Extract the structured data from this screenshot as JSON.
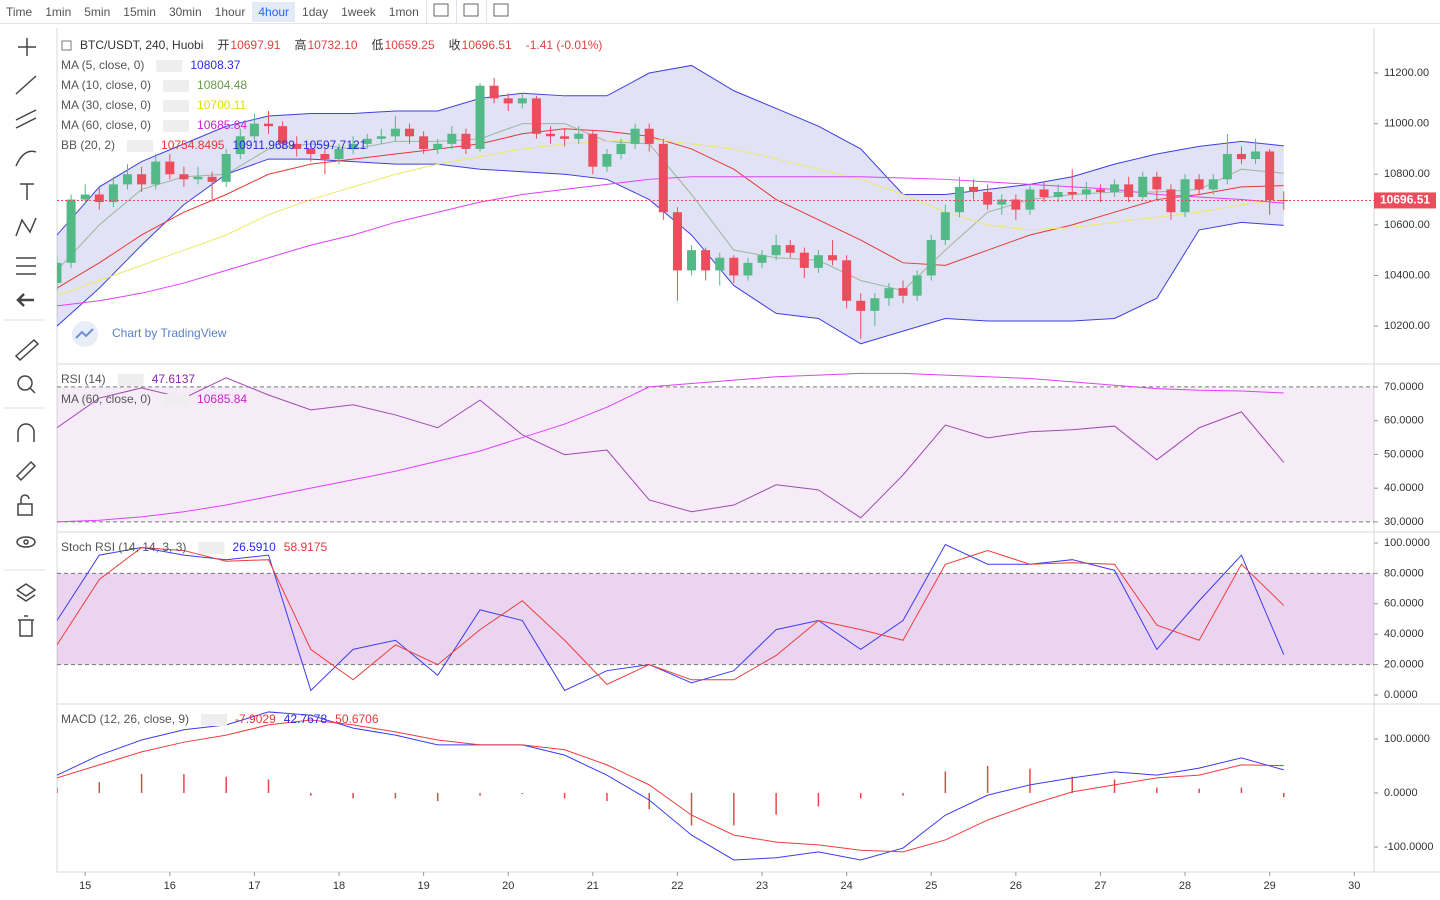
{
  "toolbar": {
    "intervals": [
      "Time",
      "1min",
      "5min",
      "15min",
      "30min",
      "1hour",
      "4hour",
      "1day",
      "1week",
      "1mon"
    ],
    "active": 6
  },
  "header": {
    "symbol": "BTC/USDT, 240, Huobi",
    "open_label": "开",
    "open": "10697.91",
    "high_label": "高",
    "high": "10732.10",
    "low_label": "低",
    "low": "10659.25",
    "close_label": "收",
    "close": "10696.51",
    "change": "-1.41 (-0.01%)"
  },
  "watermark": "Chart by TradingView",
  "xlim": [
    0,
    93.4
  ],
  "xticks": [
    {
      "value": 2,
      "label": "15"
    },
    {
      "value": 8,
      "label": "16"
    },
    {
      "value": 14,
      "label": "17"
    },
    {
      "value": 20,
      "label": "18"
    },
    {
      "value": 26,
      "label": "19"
    },
    {
      "value": 32,
      "label": "20"
    },
    {
      "value": 38,
      "label": "21"
    },
    {
      "value": 44,
      "label": "22"
    },
    {
      "value": 50,
      "label": "23"
    },
    {
      "value": 56,
      "label": "24"
    },
    {
      "value": 62,
      "label": "25"
    },
    {
      "value": 68,
      "label": "26"
    },
    {
      "value": 74,
      "label": "27"
    },
    {
      "value": 80,
      "label": "28"
    },
    {
      "value": 86,
      "label": "29"
    },
    {
      "value": 92,
      "label": "30"
    }
  ],
  "x": [
    0,
    3,
    6,
    9,
    12,
    15,
    18,
    21,
    24,
    27,
    30,
    33,
    36,
    39,
    42,
    45,
    48,
    51,
    54,
    57,
    60,
    63,
    66,
    69,
    72,
    75,
    78,
    81,
    84,
    87
  ],
  "price": {
    "ylim": [
      10058,
      11378
    ],
    "yticks": [
      {
        "value": 10200,
        "label": "10200.00"
      },
      {
        "value": 10400,
        "label": "10400.00"
      },
      {
        "value": 10600,
        "label": "10600.00"
      },
      {
        "value": 10800,
        "label": "10800.00"
      },
      {
        "value": 11000,
        "label": "11000.00"
      },
      {
        "value": 11200,
        "label": "11200.00"
      }
    ],
    "up_color": "#53b987",
    "down_color": "#eb4d5c",
    "last_label": "10696.51",
    "legend": [
      {
        "label": "MA (5, close, 0)",
        "values": [
          "10808.37"
        ],
        "colors": [
          "#2a2ae0"
        ]
      },
      {
        "label": "MA (10, close, 0)",
        "values": [
          "10804.48"
        ],
        "colors": [
          "#6a9a4a"
        ]
      },
      {
        "label": "MA (30, close, 0)",
        "values": [
          "10700.11"
        ],
        "colors": [
          "#e0e000"
        ]
      },
      {
        "label": "MA (60, close, 0)",
        "values": [
          "10685.84"
        ],
        "colors": [
          "#d020d0"
        ]
      },
      {
        "label": "BB (20, 2)",
        "values": [
          "10754.8495",
          "10911.9689",
          "10597.7121"
        ],
        "colors": [
          "#e53935",
          "#2a2ae0",
          "#2a2ae0"
        ]
      }
    ],
    "band": {
      "color": "#3f3fe0",
      "fill": "rgba(120,123,210,0.22)",
      "upper": [
        10560,
        10750,
        10850,
        10920,
        10990,
        11030,
        11040,
        11040,
        11050,
        11050,
        11100,
        11120,
        11110,
        11110,
        11200,
        11230,
        11130,
        11060,
        10990,
        10900,
        10720,
        10720,
        10740,
        10760,
        10790,
        10840,
        10880,
        10910,
        10930,
        10912
      ],
      "lower": [
        10200,
        10350,
        10520,
        10680,
        10800,
        10860,
        10860,
        10850,
        10840,
        10840,
        10820,
        10810,
        10800,
        10780,
        10700,
        10560,
        10360,
        10250,
        10230,
        10130,
        10180,
        10230,
        10220,
        10220,
        10220,
        10230,
        10310,
        10580,
        10610,
        10598
      ]
    },
    "lines": [
      {
        "color": "#e53935",
        "values": [
          10350,
          10450,
          10560,
          10650,
          10720,
          10800,
          10840,
          10860,
          10880,
          10900,
          10920,
          10960,
          10980,
          10970,
          10950,
          10900,
          10820,
          10700,
          10620,
          10540,
          10450,
          10440,
          10500,
          10560,
          10600,
          10650,
          10700,
          10720,
          10750,
          10755
        ]
      },
      {
        "color": "#9cb89c",
        "values": [
          10420,
          10600,
          10740,
          10790,
          10800,
          10900,
          10920,
          10900,
          10930,
          10930,
          10940,
          11000,
          11000,
          10930,
          10920,
          10720,
          10500,
          10470,
          10460,
          10380,
          10340,
          10500,
          10650,
          10700,
          10720,
          10730,
          10730,
          10740,
          10820,
          10804
        ]
      },
      {
        "color": "#eaea6a",
        "values": [
          10320,
          10380,
          10440,
          10500,
          10560,
          10640,
          10700,
          10750,
          10800,
          10840,
          10870,
          10900,
          10920,
          10930,
          10940,
          10920,
          10900,
          10860,
          10820,
          10780,
          10720,
          10650,
          10600,
          10580,
          10590,
          10610,
          10630,
          10650,
          10680,
          10700
        ]
      },
      {
        "color": "#e040fb",
        "values": [
          10280,
          10300,
          10330,
          10370,
          10420,
          10470,
          10520,
          10560,
          10610,
          10650,
          10690,
          10720,
          10740,
          10760,
          10780,
          10790,
          10790,
          10790,
          10790,
          10790,
          10785,
          10780,
          10770,
          10760,
          10750,
          10740,
          10720,
          10710,
          10700,
          10686
        ]
      }
    ],
    "candles": [
      [
        10370,
        10480,
        10340,
        10450
      ],
      [
        10450,
        10720,
        10430,
        10700
      ],
      [
        10700,
        10760,
        10680,
        10720
      ],
      [
        10720,
        10750,
        10660,
        10690
      ],
      [
        10690,
        10790,
        10670,
        10760
      ],
      [
        10760,
        10840,
        10740,
        10800
      ],
      [
        10800,
        10830,
        10730,
        10760
      ],
      [
        10760,
        10880,
        10740,
        10850
      ],
      [
        10850,
        10880,
        10780,
        10800
      ],
      [
        10800,
        10830,
        10750,
        10780
      ],
      [
        10780,
        10830,
        10760,
        10790
      ],
      [
        10790,
        10810,
        10700,
        10770
      ],
      [
        10770,
        10900,
        10750,
        10880
      ],
      [
        10880,
        10980,
        10860,
        10950
      ],
      [
        10950,
        11040,
        10930,
        11000
      ],
      [
        11000,
        11050,
        10960,
        10990
      ],
      [
        10990,
        11010,
        10900,
        10920
      ],
      [
        10920,
        10950,
        10870,
        10900
      ],
      [
        10900,
        10930,
        10850,
        10880
      ],
      [
        10880,
        10900,
        10800,
        10860
      ],
      [
        10860,
        10920,
        10840,
        10900
      ],
      [
        10900,
        10950,
        10880,
        10920
      ],
      [
        10920,
        10960,
        10900,
        10940
      ],
      [
        10940,
        10980,
        10920,
        10950
      ],
      [
        10950,
        11030,
        10930,
        10980
      ],
      [
        10980,
        11000,
        10920,
        10950
      ],
      [
        10950,
        10970,
        10880,
        10900
      ],
      [
        10900,
        10940,
        10880,
        10920
      ],
      [
        10920,
        10990,
        10900,
        10960
      ],
      [
        10960,
        10980,
        10880,
        10900
      ],
      [
        10900,
        11160,
        10890,
        11150
      ],
      [
        11150,
        11180,
        11080,
        11100
      ],
      [
        11100,
        11120,
        11050,
        11080
      ],
      [
        11080,
        11120,
        11060,
        11100
      ],
      [
        11100,
        11110,
        10940,
        10960
      ],
      [
        10960,
        10990,
        10920,
        10950
      ],
      [
        10950,
        10980,
        10910,
        10940
      ],
      [
        10940,
        10990,
        10920,
        10960
      ],
      [
        10960,
        10970,
        10800,
        10830
      ],
      [
        10830,
        10900,
        10810,
        10880
      ],
      [
        10880,
        10940,
        10860,
        10920
      ],
      [
        10920,
        11000,
        10900,
        10980
      ],
      [
        10980,
        11000,
        10890,
        10920
      ],
      [
        10920,
        10940,
        10620,
        10650
      ],
      [
        10650,
        10670,
        10300,
        10420
      ],
      [
        10420,
        10520,
        10400,
        10500
      ],
      [
        10500,
        10510,
        10380,
        10420
      ],
      [
        10420,
        10490,
        10360,
        10470
      ],
      [
        10470,
        10480,
        10370,
        10400
      ],
      [
        10400,
        10470,
        10380,
        10450
      ],
      [
        10450,
        10500,
        10430,
        10480
      ],
      [
        10480,
        10560,
        10460,
        10520
      ],
      [
        10520,
        10540,
        10470,
        10490
      ],
      [
        10490,
        10510,
        10390,
        10430
      ],
      [
        10430,
        10500,
        10410,
        10480
      ],
      [
        10480,
        10540,
        10440,
        10460
      ],
      [
        10460,
        10480,
        10270,
        10300
      ],
      [
        10300,
        10330,
        10150,
        10260
      ],
      [
        10260,
        10330,
        10200,
        10310
      ],
      [
        10310,
        10370,
        10280,
        10350
      ],
      [
        10350,
        10380,
        10290,
        10320
      ],
      [
        10320,
        10420,
        10300,
        10400
      ],
      [
        10400,
        10560,
        10380,
        10540
      ],
      [
        10540,
        10680,
        10520,
        10650
      ],
      [
        10650,
        10790,
        10630,
        10750
      ],
      [
        10750,
        10780,
        10700,
        10730
      ],
      [
        10730,
        10760,
        10660,
        10680
      ],
      [
        10680,
        10720,
        10640,
        10700
      ],
      [
        10700,
        10720,
        10620,
        10660
      ],
      [
        10660,
        10760,
        10640,
        10740
      ],
      [
        10740,
        10770,
        10690,
        10710
      ],
      [
        10710,
        10760,
        10690,
        10730
      ],
      [
        10730,
        10820,
        10700,
        10720
      ],
      [
        10720,
        10770,
        10700,
        10740
      ],
      [
        10740,
        10760,
        10690,
        10730
      ],
      [
        10730,
        10780,
        10710,
        10760
      ],
      [
        10760,
        10790,
        10690,
        10710
      ],
      [
        10710,
        10810,
        10700,
        10790
      ],
      [
        10790,
        10810,
        10700,
        10740
      ],
      [
        10740,
        10760,
        10620,
        10650
      ],
      [
        10650,
        10800,
        10630,
        10780
      ],
      [
        10780,
        10800,
        10720,
        10740
      ],
      [
        10740,
        10800,
        10720,
        10780
      ],
      [
        10780,
        10960,
        10760,
        10880
      ],
      [
        10880,
        10910,
        10840,
        10860
      ],
      [
        10860,
        10940,
        10840,
        10890
      ],
      [
        10890,
        10900,
        10640,
        10697.91
      ],
      [
        10697.91,
        10732.1,
        10659.25,
        10696.51
      ]
    ]
  },
  "indicators": [
    {
      "ylim": [
        27.6,
        76.2
      ],
      "yticks": [
        {
          "value": 30,
          "label": "30.0000"
        },
        {
          "value": 40,
          "label": "40.0000"
        },
        {
          "value": 50,
          "label": "50.0000"
        },
        {
          "value": 60,
          "label": "60.0000"
        },
        {
          "value": 70,
          "label": "70.0000"
        }
      ],
      "bands": [
        30,
        70
      ],
      "band_fill": "rgba(156,39,176,0.09)",
      "legend": [
        {
          "label": "RSI (14)",
          "values": [
            "47.6137"
          ],
          "colors": [
            "#8e24aa"
          ]
        },
        {
          "label": "MA (60, close, 0)",
          "values": [
            "10685.84"
          ],
          "colors": [
            "#d020d0"
          ]
        }
      ],
      "lines": [
        {
          "color": "#a04ab0",
          "values": [
            57.9,
            66.7,
            69.7,
            66.7,
            72.7,
            67.6,
            63.2,
            64.7,
            61.7,
            57.9,
            66.1,
            55.8,
            49.9,
            51.3,
            36.5,
            33.0,
            35.0,
            41.0,
            39.5,
            31.2,
            43.9,
            58.7,
            54.9,
            56.7,
            57.3,
            58.4,
            48.4,
            57.9,
            62.6,
            47.6137
          ]
        },
        {
          "color": "#e040fb",
          "values": [
            30,
            30.5,
            31.5,
            33,
            35,
            37.5,
            40,
            42.5,
            45,
            48,
            51,
            55,
            59,
            64,
            70,
            71,
            72,
            73,
            73.5,
            74,
            74,
            73.5,
            73,
            72.5,
            71.5,
            70.5,
            69.5,
            69,
            68.8,
            68.2
          ]
        }
      ]
    },
    {
      "ylim": [
        -4.6,
        105.9
      ],
      "yticks": [
        {
          "value": 0,
          "label": "0.0000"
        },
        {
          "value": 20,
          "label": "20.0000"
        },
        {
          "value": 40,
          "label": "40.0000"
        },
        {
          "value": 60,
          "label": "60.0000"
        },
        {
          "value": 80,
          "label": "80.0000"
        },
        {
          "value": 100,
          "label": "100.0000"
        }
      ],
      "bands": [
        20,
        80
      ],
      "band_fill": "rgba(156,39,176,0.2)",
      "legend": [
        {
          "label": "Stoch RSI (14, 14, 3, 3)",
          "values": [
            "26.5910",
            "58.9175"
          ],
          "colors": [
            "#2a2ae0",
            "#e53935"
          ]
        }
      ],
      "lines": [
        {
          "color": "#3c3cf0",
          "values": [
            49,
            92,
            97,
            92,
            89,
            92,
            3,
            30,
            36,
            13,
            56,
            49,
            3,
            16,
            20,
            8,
            16,
            43,
            49,
            30,
            49,
            99,
            86,
            86,
            89,
            82,
            30,
            62,
            92,
            26.591
          ]
        },
        {
          "color": "#f03c3c",
          "values": [
            33,
            76,
            97,
            95,
            88,
            89,
            30,
            10,
            33,
            20,
            43,
            62,
            36,
            7,
            20,
            10,
            10,
            26,
            49,
            43,
            36,
            86,
            95,
            86,
            87,
            86,
            46,
            36,
            86,
            58.9175
          ]
        }
      ]
    },
    {
      "ylim": [
        -142.6,
        161
      ],
      "yticks": [
        {
          "value": -100,
          "label": "-100.0000"
        },
        {
          "value": 0,
          "label": "0.0000"
        },
        {
          "value": 100,
          "label": "100.0000"
        }
      ],
      "legend": [
        {
          "label": "MACD (12, 26, close, 9)",
          "values": [
            "-7.9029",
            "42.7678",
            "50.6706"
          ],
          "colors": [
            "#e53935",
            "#2a2ae0",
            "#e53935"
          ]
        }
      ],
      "histogram": {
        "color": "#e04848",
        "values": [
          10,
          20,
          35,
          35,
          30,
          25,
          -5,
          -10,
          -10,
          -15,
          -5,
          -2,
          -10,
          -15,
          -30,
          -60,
          -60,
          -40,
          -25,
          -10,
          -5,
          40,
          50,
          45,
          30,
          25,
          10,
          8,
          10,
          -7.9029
        ]
      },
      "lines": [
        {
          "color": "#3c3cf0",
          "values": [
            33,
            70,
            98,
            117,
            126,
            150,
            144,
            120,
            107,
            89,
            89,
            89,
            70,
            33,
            -13,
            -78,
            -124,
            -120,
            -109,
            -124,
            -102,
            -41,
            -4,
            15,
            28,
            39,
            33,
            46,
            65,
            42.7678
          ]
        },
        {
          "color": "#f03c3c",
          "values": [
            28,
            52,
            76,
            94,
            107,
            126,
            135,
            126,
            113,
            98,
            89,
            89,
            80,
            52,
            15,
            -41,
            -78,
            -91,
            -96,
            -106,
            -109,
            -87,
            -50,
            -22,
            2,
            15,
            28,
            33,
            52,
            50.6706
          ]
        }
      ]
    }
  ]
}
